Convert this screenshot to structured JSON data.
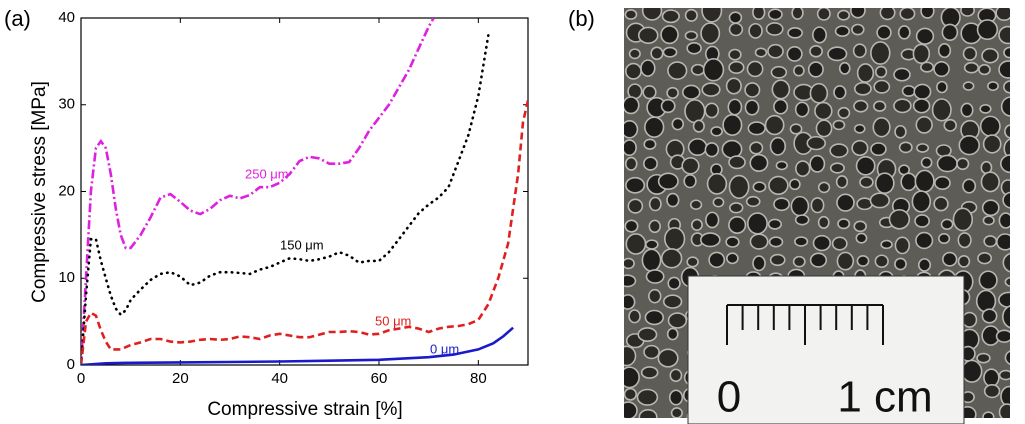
{
  "chart_data": {
    "type": "line",
    "panel_labels": [
      "(a)",
      "(b)"
    ],
    "x_label": "Compressive strain [%]",
    "y_label": "Compressive stress [MPa]",
    "xlim": [
      0,
      90
    ],
    "xticks": [
      0,
      20,
      40,
      60,
      80
    ],
    "ylim": [
      0,
      40
    ],
    "yticks": [
      0,
      10,
      20,
      30,
      40
    ],
    "series": [
      {
        "name": "250 μm",
        "color": "#e020e0",
        "style": "dash-dot",
        "x": [
          0,
          1,
          2,
          3,
          4,
          5,
          6,
          7,
          8,
          9,
          10,
          12,
          14,
          16,
          18,
          20,
          22,
          24,
          26,
          28,
          30,
          32,
          34,
          36,
          38,
          40,
          42,
          44,
          46,
          48,
          50,
          52,
          54,
          56,
          58,
          60,
          62,
          64,
          66,
          68,
          70,
          71
        ],
        "values": [
          0,
          10,
          20,
          25,
          25.8,
          25,
          22,
          18,
          15,
          13.5,
          13.5,
          15,
          17,
          19.3,
          19.7,
          18.8,
          17.8,
          17.4,
          18,
          19,
          19.5,
          19.2,
          19.6,
          20.5,
          20.5,
          21,
          22,
          23.5,
          24,
          23.8,
          23.2,
          23.2,
          23.4,
          25,
          27,
          28.5,
          30,
          32,
          34,
          36.5,
          39,
          40
        ]
      },
      {
        "name": "150 μm",
        "color": "#000000",
        "style": "dotted",
        "x": [
          0,
          1,
          2,
          3,
          4,
          5,
          6,
          7,
          8,
          9,
          10,
          12,
          14,
          16,
          18,
          20,
          22,
          24,
          26,
          28,
          30,
          32,
          34,
          36,
          38,
          40,
          42,
          44,
          46,
          48,
          50,
          52,
          54,
          56,
          58,
          60,
          62,
          64,
          66,
          68,
          70,
          72,
          74,
          76,
          78,
          80,
          81,
          82
        ],
        "values": [
          0,
          8,
          14.5,
          14.5,
          12,
          10,
          8,
          6.5,
          5.8,
          6.3,
          7.5,
          8.7,
          9.8,
          10.5,
          10.7,
          10.2,
          9.2,
          9.5,
          10.3,
          10.7,
          10.7,
          10.6,
          10.5,
          11,
          11.3,
          11.8,
          12.3,
          12.2,
          12,
          12.2,
          12.5,
          13,
          12.6,
          11.8,
          12,
          12,
          13,
          14.5,
          16,
          17.5,
          18.5,
          19.3,
          20.5,
          23.5,
          26.5,
          31,
          34.5,
          38
        ]
      },
      {
        "name": "50 μm",
        "color": "#e02020",
        "style": "dashed",
        "x": [
          0,
          1,
          2,
          3,
          4,
          5,
          6,
          8,
          10,
          12,
          14,
          16,
          18,
          20,
          22,
          24,
          26,
          28,
          30,
          32,
          34,
          36,
          38,
          40,
          42,
          44,
          46,
          48,
          50,
          52,
          54,
          56,
          58,
          60,
          62,
          64,
          66,
          68,
          70,
          72,
          74,
          76,
          78,
          80,
          82,
          84,
          86,
          88,
          89,
          90
        ],
        "values": [
          0,
          5,
          6,
          5.7,
          4,
          2.7,
          1.8,
          1.8,
          2.3,
          2.6,
          3,
          3,
          2.7,
          2.6,
          2.7,
          2.9,
          3,
          2.9,
          3,
          3.3,
          3.2,
          3,
          3.4,
          3.6,
          3.4,
          3.2,
          3.2,
          3.5,
          3.8,
          3.8,
          3.9,
          3.8,
          3.5,
          3.6,
          4,
          4.2,
          4.4,
          4.2,
          3.8,
          4.2,
          4.4,
          4.5,
          4.7,
          5.2,
          7,
          10,
          14,
          22,
          28,
          30.5
        ]
      },
      {
        "name": "0 μm",
        "color": "#1a1acc",
        "style": "solid",
        "x": [
          0,
          5,
          10,
          20,
          30,
          40,
          50,
          60,
          70,
          75,
          80,
          83,
          85,
          87
        ],
        "values": [
          0,
          0.2,
          0.25,
          0.3,
          0.35,
          0.4,
          0.5,
          0.6,
          0.9,
          1.2,
          1.8,
          2.5,
          3.3,
          4.3
        ]
      }
    ]
  },
  "photo": {
    "ruler_labels": [
      "0",
      "1 cm"
    ]
  }
}
